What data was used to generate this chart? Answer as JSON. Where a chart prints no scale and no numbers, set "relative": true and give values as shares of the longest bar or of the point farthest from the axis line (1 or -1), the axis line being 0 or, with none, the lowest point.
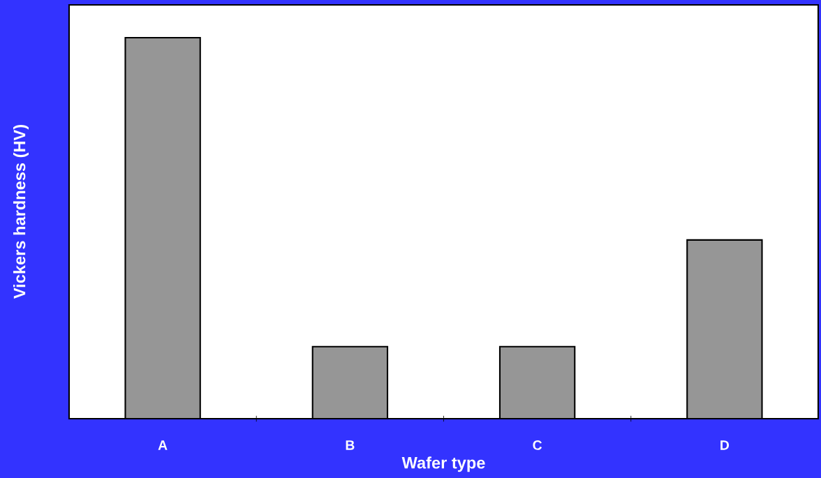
{
  "chart_data": {
    "type": "bar",
    "xlabel": "Wafer type",
    "ylabel": "Vickers hardness (HV)",
    "categories": [
      "A",
      "B",
      "C",
      "D"
    ],
    "values": [
      1,
      0.189,
      0.189,
      0.469
    ],
    "color": "#969696",
    "relative": true,
    "grid": false,
    "legend": false
  }
}
